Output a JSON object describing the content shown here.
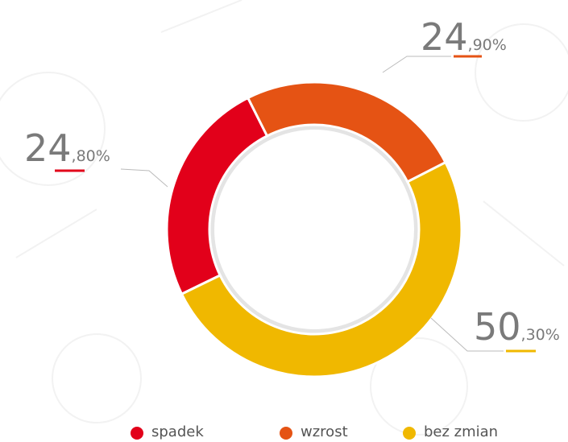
{
  "chart_data": {
    "type": "pie",
    "categories": [
      "spadek",
      "wzrost",
      "bez zmian"
    ],
    "values": [
      24.8,
      24.9,
      50.3
    ],
    "value_labels": [
      "24,80%",
      "24,90%",
      "50,30%"
    ],
    "colors": [
      "#e2001a",
      "#e55314",
      "#f0b800"
    ]
  }
}
